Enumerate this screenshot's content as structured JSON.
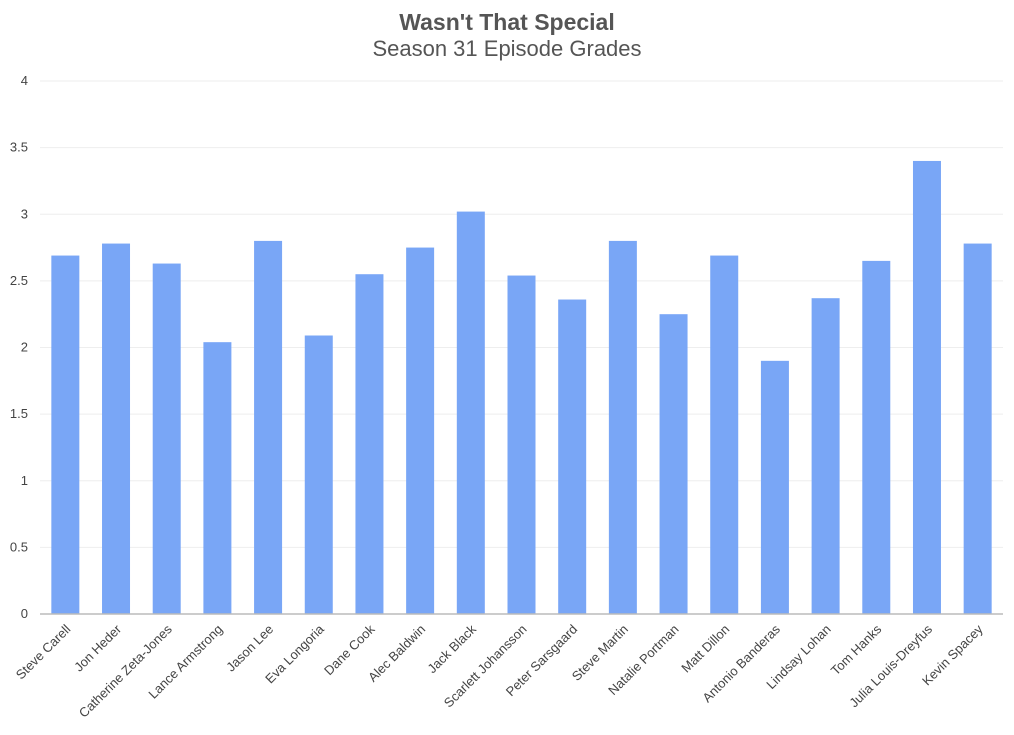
{
  "chart_data": {
    "type": "bar",
    "title": "Wasn't That Special",
    "subtitle": "Season 31 Episode Grades",
    "categories": [
      "Steve Carell",
      "Jon Heder",
      "Catherine Zeta-Jones",
      "Lance Armstrong",
      "Jason Lee",
      "Eva Longoria",
      "Dane Cook",
      "Alec Baldwin",
      "Jack Black",
      "Scarlett Johansson",
      "Peter Sarsgaard",
      "Steve Martin",
      "Natalie Portman",
      "Matt Dillon",
      "Antonio Banderas",
      "Lindsay Lohan",
      "Tom Hanks",
      "Julia Louis-Dreyfus",
      "Kevin Spacey"
    ],
    "values": [
      2.69,
      2.78,
      2.63,
      2.04,
      2.8,
      2.09,
      2.55,
      2.75,
      3.02,
      2.54,
      2.36,
      2.8,
      2.25,
      2.69,
      1.9,
      2.37,
      2.65,
      3.4,
      2.78
    ],
    "color": "#79a6f6",
    "ylim": [
      0,
      4
    ],
    "yticks": [
      0,
      0.5,
      1,
      1.5,
      2,
      2.5,
      3,
      3.5,
      4
    ],
    "grid": true
  }
}
